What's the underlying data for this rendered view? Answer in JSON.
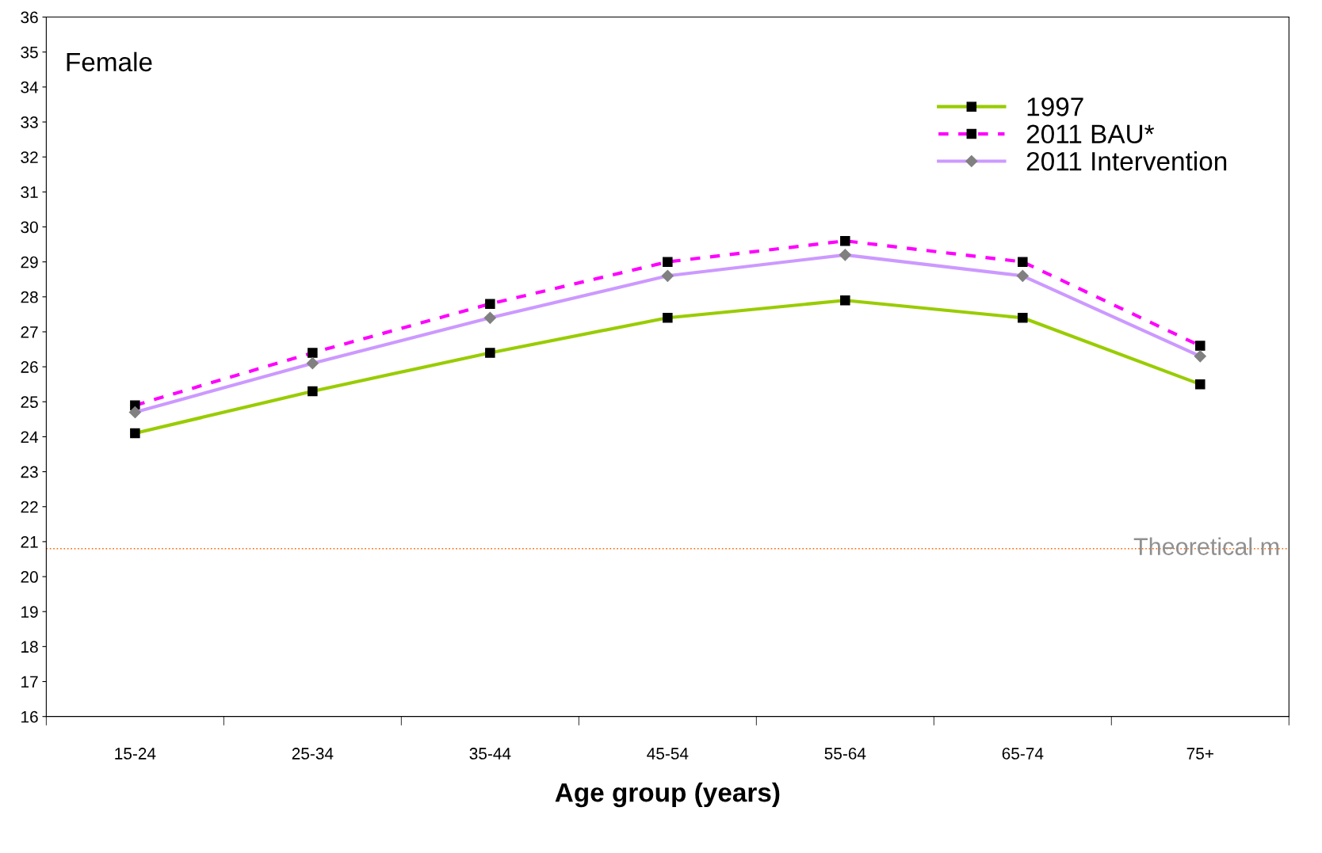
{
  "chart_data": {
    "type": "line",
    "xlabel": "Age group (years)",
    "categories": [
      "15-24",
      "25-34",
      "35-44",
      "45-54",
      "55-64",
      "65-74",
      "75+"
    ],
    "series": [
      {
        "name": "1997",
        "color": "#99cc00",
        "values": [
          24.1,
          25.3,
          26.4,
          27.4,
          27.9,
          27.4,
          25.5
        ],
        "marker": "square",
        "line_style": "solid"
      },
      {
        "name": "2011 BAU*",
        "color": "#ff00ff",
        "values": [
          24.9,
          26.4,
          27.8,
          29.0,
          29.6,
          29.0,
          26.6
        ],
        "marker": "square",
        "line_style": "dashed"
      },
      {
        "name": "2011 Intervention",
        "color": "#cc99ff",
        "values": [
          24.7,
          26.1,
          27.4,
          28.6,
          29.2,
          28.6,
          26.3
        ],
        "marker": "diamond",
        "line_style": "solid"
      }
    ],
    "ylim": [
      16,
      36
    ],
    "yticks": [
      16,
      17,
      18,
      19,
      20,
      21,
      22,
      23,
      24,
      25,
      26,
      27,
      28,
      29,
      30,
      31,
      32,
      33,
      34,
      35,
      36
    ],
    "ref_lines": [
      {
        "axis": "y",
        "value": 20.8,
        "label": "Theoretical m",
        "color": "#ff6600",
        "line_style": "dotted"
      }
    ],
    "annotations": [
      "Female"
    ],
    "grid": false,
    "legend": "top right"
  }
}
